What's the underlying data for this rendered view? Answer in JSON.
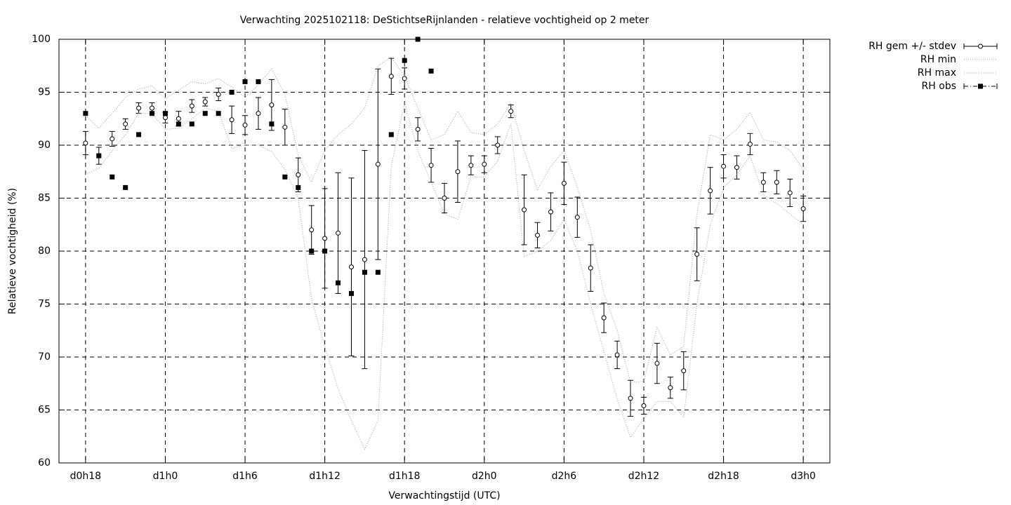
{
  "chart_data": {
    "type": "errorbar",
    "title": "Verwachting 2025102118: DeStichtseRijnlanden - relatieve vochtigheid op 2 meter",
    "x_label": "Verwachtingstijd (UTC)",
    "y_label": "Relatieve vochtigheid (%)",
    "x": [
      18,
      19,
      20,
      21,
      22,
      23,
      24,
      25,
      26,
      27,
      28,
      29,
      30,
      31,
      32,
      33,
      34,
      35,
      36,
      37,
      38,
      39,
      40,
      41,
      42,
      43,
      44,
      45,
      46,
      47,
      48,
      49,
      50,
      51,
      52,
      53,
      54,
      55,
      56,
      57,
      58,
      59,
      60,
      61,
      62,
      63,
      64,
      65,
      66,
      67,
      68,
      69,
      70,
      71,
      72
    ],
    "xlim": [
      16,
      74
    ],
    "xticks": [
      {
        "value": 18,
        "label": "d0h18"
      },
      {
        "value": 24,
        "label": "d1h0"
      },
      {
        "value": 30,
        "label": "d1h6"
      },
      {
        "value": 36,
        "label": "d1h12"
      },
      {
        "value": 42,
        "label": "d1h18"
      },
      {
        "value": 48,
        "label": "d2h0"
      },
      {
        "value": 54,
        "label": "d2h6"
      },
      {
        "value": 60,
        "label": "d2h12"
      },
      {
        "value": 66,
        "label": "d2h18"
      },
      {
        "value": 72,
        "label": "d3h0"
      }
    ],
    "ylim": [
      60,
      100
    ],
    "yticks": [
      60,
      65,
      70,
      75,
      80,
      85,
      90,
      95,
      100
    ],
    "grid": true,
    "legend": "right",
    "series": [
      {
        "name": "RH gem +/- stdev",
        "color": "#000000",
        "marker": "open-circle",
        "values": [
          90.2,
          89,
          90.6,
          92,
          93.5,
          93.5,
          92.6,
          92.5,
          93.7,
          94.1,
          94.8,
          92.4,
          91.9,
          93,
          93.8,
          91.7,
          87.2,
          82,
          81.2,
          81.7,
          78.5,
          79.2,
          88.2,
          96.5,
          96.3,
          91.5,
          88.1,
          85,
          87.5,
          88.1,
          88.2,
          90,
          93.2,
          83.9,
          81.5,
          83.7,
          86.4,
          83.2,
          78.4,
          73.7,
          70.2,
          66.1,
          65.4,
          69.4,
          67.1,
          68.7,
          79.7,
          85.7,
          88,
          87.9,
          90.1,
          86.5,
          86.5,
          85.5,
          84
        ],
        "errors": [
          1.1,
          0.8,
          0.7,
          0.5,
          0.5,
          0.5,
          0.5,
          0.7,
          0.6,
          0.4,
          0.6,
          1.3,
          0.9,
          1.5,
          2.4,
          1.7,
          1.6,
          2.3,
          4.7,
          5.7,
          8.4,
          10.3,
          9,
          1.7,
          1,
          1.1,
          1.6,
          1.4,
          2.9,
          0.9,
          0.8,
          0.8,
          0.6,
          3.3,
          1.2,
          1.8,
          2,
          1.9,
          2.2,
          1.4,
          1.3,
          1.7,
          0.8,
          1.9,
          1,
          1.8,
          2.5,
          2.2,
          1.1,
          1.1,
          1,
          0.9,
          1.1,
          1.3,
          1.2
        ]
      },
      {
        "name": "RH min",
        "color": "#a0a0a0",
        "line_style": "dotted",
        "values": [
          87.3,
          87.8,
          89.5,
          91,
          93,
          93,
          91.5,
          91.6,
          92.5,
          93.5,
          93.2,
          89.7,
          90,
          90,
          89.4,
          87.7,
          85,
          75.5,
          71,
          67,
          64,
          61.3,
          64,
          88,
          94,
          89.5,
          86.5,
          83.5,
          83,
          87,
          87,
          88.5,
          92,
          79.5,
          80,
          81,
          83,
          80,
          75,
          70.5,
          66,
          62.4,
          64.2,
          65.8,
          65.8,
          64.3,
          75,
          82.5,
          86,
          87.2,
          89,
          85.3,
          84.5,
          83.5,
          82.5
        ]
      },
      {
        "name": "RH max",
        "color": "#a0a0a0",
        "line_style": "dotted",
        "values": [
          92.8,
          91.6,
          93,
          94.5,
          95.3,
          95.6,
          94.4,
          95.2,
          96,
          95.8,
          96.3,
          95.5,
          94.5,
          95.7,
          97.2,
          94.8,
          89,
          86.5,
          89.5,
          91,
          92,
          93.5,
          97.5,
          98.3,
          96.5,
          93.5,
          90.5,
          91,
          93.2,
          91.2,
          91,
          92,
          94,
          89.5,
          85.8,
          88,
          89.5,
          86,
          82,
          76,
          72.5,
          67.6,
          67.7,
          72.8,
          70.2,
          71,
          83.5,
          91,
          90.5,
          91.5,
          93.1,
          90.5,
          90.3,
          89.5,
          87.7
        ]
      },
      {
        "name": "RH obs",
        "color": "#000000",
        "marker": "square",
        "values": [
          93,
          89,
          87,
          86,
          91,
          93,
          93,
          92,
          92,
          93,
          93,
          95,
          96,
          96,
          92,
          87,
          86,
          80,
          80,
          77,
          76,
          78,
          78,
          91,
          98,
          100,
          97,
          null,
          null,
          null,
          null,
          null,
          null,
          null,
          null,
          null,
          null,
          null,
          null,
          null,
          null,
          null,
          null,
          null,
          null,
          null,
          null,
          null,
          null,
          null,
          null,
          null,
          null,
          null,
          null
        ]
      }
    ]
  }
}
